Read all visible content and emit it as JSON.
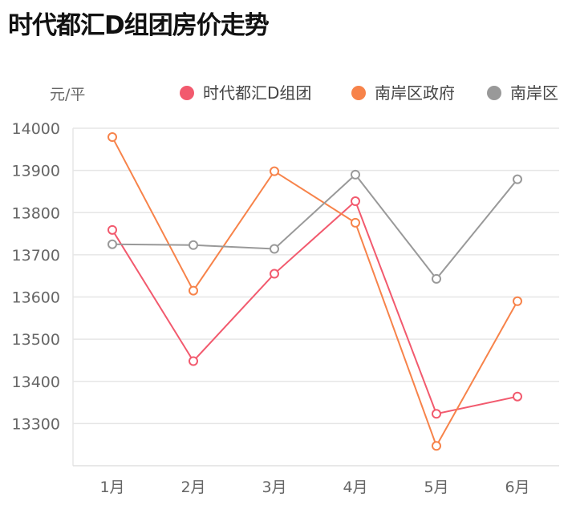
{
  "chart_data": {
    "type": "line",
    "title": "时代都汇D组团房价走势",
    "ylabel": "元/平",
    "xlabel": "",
    "categories": [
      "1月",
      "2月",
      "3月",
      "4月",
      "5月",
      "6月"
    ],
    "ylim": [
      13200,
      14000
    ],
    "yticks": [
      13300,
      13400,
      13500,
      13600,
      13700,
      13800,
      13900,
      14000
    ],
    "grid": true,
    "legend_position": "top-right",
    "series": [
      {
        "name": "时代都汇D组团",
        "color": "#f25a6e",
        "values": [
          13759,
          13448,
          13655,
          13827,
          13323,
          13364
        ]
      },
      {
        "name": "南岸区政府",
        "color": "#f7834a",
        "values": [
          13979,
          13615,
          13898,
          13776,
          13247,
          13590
        ]
      },
      {
        "name": "南岸区",
        "color": "#999999",
        "values": [
          13725,
          13723,
          13714,
          13890,
          13643,
          13879
        ]
      }
    ]
  }
}
